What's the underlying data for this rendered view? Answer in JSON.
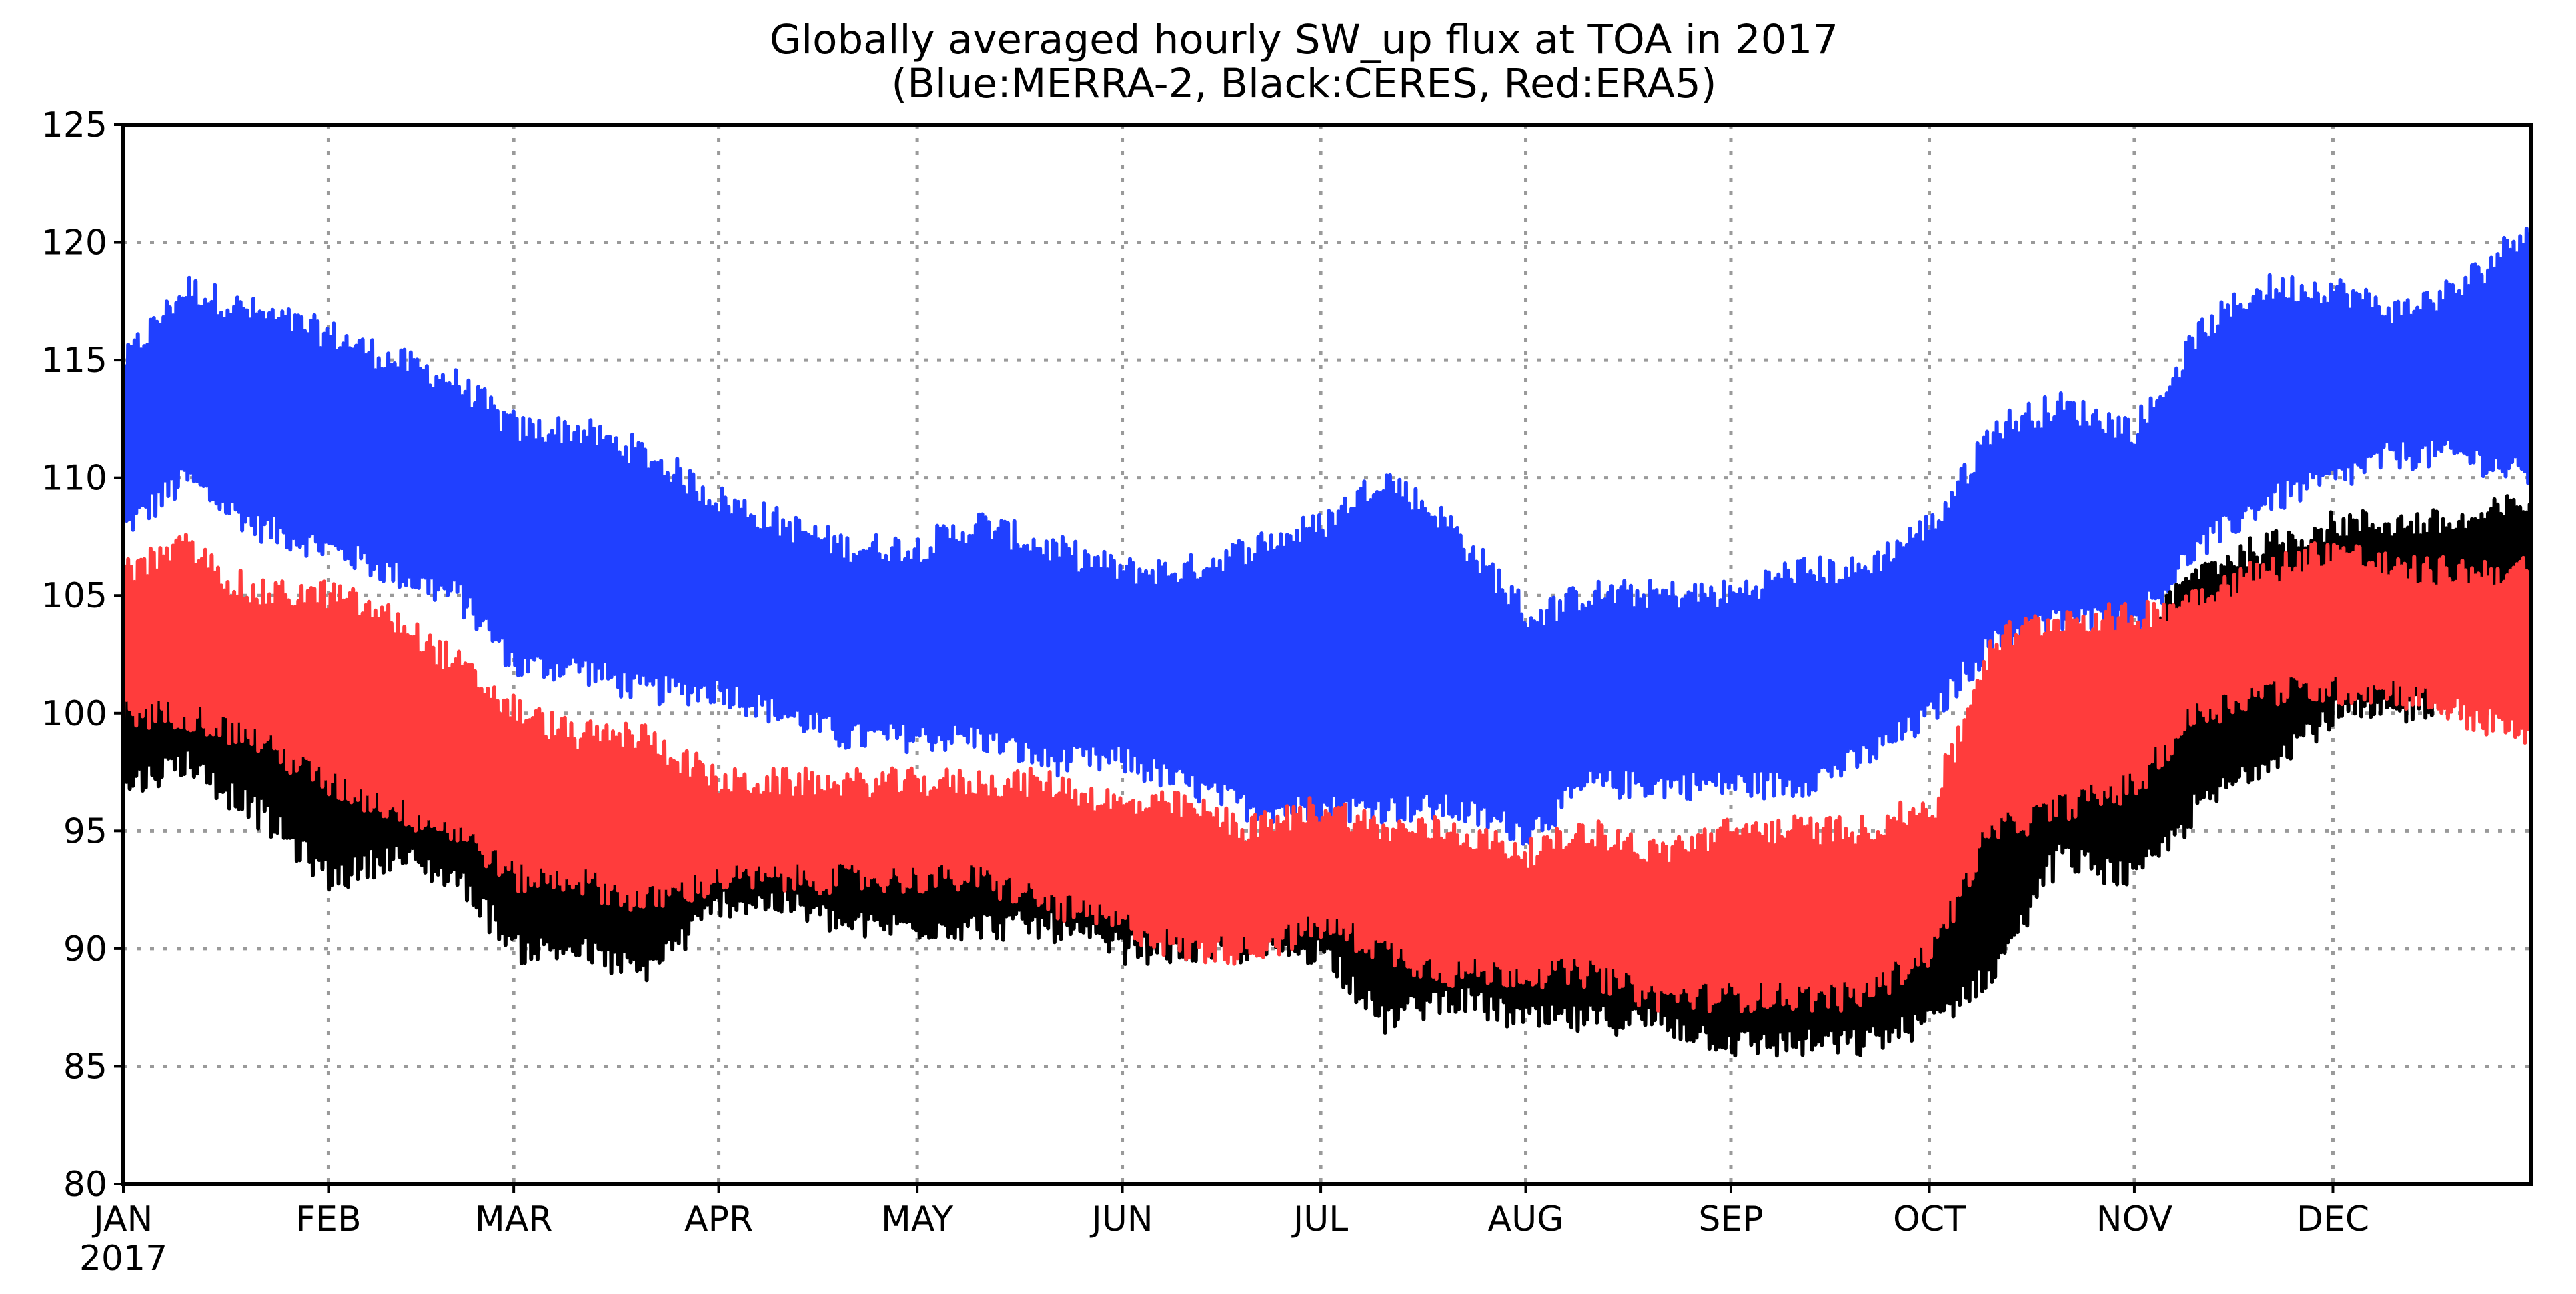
{
  "chart_data": {
    "type": "line",
    "title": "Globally averaged hourly SW_up flux at TOA in 2017",
    "subtitle": "(Blue:MERRA-2, Black:CERES, Red:ERA5)",
    "xlabel": "",
    "ylabel": "",
    "x_start": "2017-01-01",
    "x_end": "2017-12-31",
    "x_tick_labels": [
      "JAN",
      "FEB",
      "MAR",
      "APR",
      "MAY",
      "JUN",
      "JUL",
      "AUG",
      "SEP",
      "OCT",
      "NOV",
      "DEC"
    ],
    "x_tick_dates": [
      "2017-01-01",
      "2017-02-01",
      "2017-03-01",
      "2017-04-01",
      "2017-05-01",
      "2017-06-01",
      "2017-07-01",
      "2017-08-01",
      "2017-09-01",
      "2017-10-01",
      "2017-11-01",
      "2017-12-01"
    ],
    "year_label": "2017",
    "ylim": [
      80,
      125
    ],
    "y_ticks": [
      80,
      85,
      90,
      95,
      100,
      105,
      110,
      115,
      120,
      125
    ],
    "grid": true,
    "series": [
      {
        "color": "#2040ff",
        "dates": [
          "2017-01-01",
          "2017-01-10",
          "2017-01-20",
          "2017-02-01",
          "2017-02-10",
          "2017-02-20",
          "2017-03-01",
          "2017-03-10",
          "2017-03-20",
          "2017-04-01",
          "2017-04-10",
          "2017-04-20",
          "2017-05-01",
          "2017-05-10",
          "2017-05-20",
          "2017-06-01",
          "2017-06-10",
          "2017-06-20",
          "2017-07-01",
          "2017-07-10",
          "2017-07-20",
          "2017-08-01",
          "2017-08-10",
          "2017-08-20",
          "2017-09-01",
          "2017-09-10",
          "2017-09-20",
          "2017-10-01",
          "2017-10-10",
          "2017-10-20",
          "2017-11-01",
          "2017-11-10",
          "2017-11-20",
          "2017-12-01",
          "2017-12-10",
          "2017-12-20",
          "2017-12-31"
        ],
        "lower": [
          108,
          110,
          108,
          107,
          106,
          105,
          102,
          102,
          101,
          101,
          100,
          99,
          99,
          99,
          98,
          98,
          97,
          96,
          96,
          96,
          96,
          95,
          97,
          97,
          97,
          97,
          98,
          100,
          103,
          104,
          104,
          107,
          109,
          110,
          111,
          111,
          110
        ],
        "upper": [
          115,
          118,
          117,
          116,
          115,
          114,
          112,
          112,
          111,
          109,
          108,
          107,
          107,
          108,
          107,
          106,
          106,
          107,
          108,
          110,
          108,
          104,
          105,
          105,
          105,
          106,
          106,
          108,
          112,
          113,
          112,
          116,
          118,
          118,
          117,
          118,
          121
        ]
      },
      {
        "color": "#000000",
        "dates": [
          "2017-01-01",
          "2017-01-10",
          "2017-01-20",
          "2017-02-01",
          "2017-02-10",
          "2017-02-20",
          "2017-03-01",
          "2017-03-10",
          "2017-03-20",
          "2017-04-01",
          "2017-04-10",
          "2017-04-20",
          "2017-05-01",
          "2017-05-10",
          "2017-05-20",
          "2017-06-01",
          "2017-06-10",
          "2017-06-20",
          "2017-07-01",
          "2017-07-10",
          "2017-07-20",
          "2017-08-01",
          "2017-08-10",
          "2017-08-20",
          "2017-09-01",
          "2017-09-10",
          "2017-09-20",
          "2017-10-01",
          "2017-10-10",
          "2017-10-20",
          "2017-11-01",
          "2017-11-10",
          "2017-11-20",
          "2017-12-01",
          "2017-12-10",
          "2017-12-20",
          "2017-12-31"
        ],
        "lower": [
          97,
          98,
          96,
          93,
          94,
          93,
          90,
          90,
          89,
          92,
          92,
          91,
          91,
          91,
          91,
          90,
          90,
          90,
          90,
          87,
          88,
          87,
          87,
          87,
          86,
          86,
          86,
          87,
          89,
          94,
          93,
          96,
          98,
          100,
          100,
          101,
          101
        ],
        "upper": [
          103,
          104,
          103,
          101,
          100,
          99,
          98,
          98,
          97,
          96,
          95,
          95,
          95,
          95,
          95,
          94,
          94,
          94,
          95,
          93,
          93,
          92,
          92,
          92,
          91,
          91,
          92,
          93,
          100,
          101,
          103,
          106,
          107,
          108,
          108,
          108,
          109
        ]
      },
      {
        "color": "#ff3c3c",
        "dates": [
          "2017-01-01",
          "2017-01-10",
          "2017-01-20",
          "2017-02-01",
          "2017-02-10",
          "2017-02-20",
          "2017-03-01",
          "2017-03-10",
          "2017-03-20",
          "2017-04-01",
          "2017-04-10",
          "2017-04-20",
          "2017-05-01",
          "2017-05-10",
          "2017-05-20",
          "2017-06-01",
          "2017-06-10",
          "2017-06-20",
          "2017-07-01",
          "2017-07-10",
          "2017-07-20",
          "2017-08-01",
          "2017-08-10",
          "2017-08-20",
          "2017-09-01",
          "2017-09-10",
          "2017-09-20",
          "2017-10-01",
          "2017-10-10",
          "2017-10-20",
          "2017-11-01",
          "2017-11-10",
          "2017-11-20",
          "2017-12-01",
          "2017-12-10",
          "2017-12-20",
          "2017-12-31"
        ],
        "lower": [
          100,
          100,
          99,
          97,
          96,
          95,
          93,
          93,
          92,
          93,
          93,
          93,
          93,
          93,
          92,
          91,
          90,
          90,
          91,
          90,
          89,
          89,
          89,
          88,
          88,
          88,
          88,
          90,
          95,
          96,
          97,
          100,
          101,
          101,
          101,
          100,
          99
        ],
        "upper": [
          106,
          107,
          105,
          105,
          104,
          102,
          100,
          99,
          99,
          97,
          97,
          97,
          97,
          97,
          97,
          96,
          96,
          95,
          96,
          95,
          95,
          94,
          95,
          94,
          95,
          95,
          95,
          96,
          103,
          104,
          104,
          105,
          106,
          107,
          106,
          106,
          106
        ]
      }
    ]
  }
}
